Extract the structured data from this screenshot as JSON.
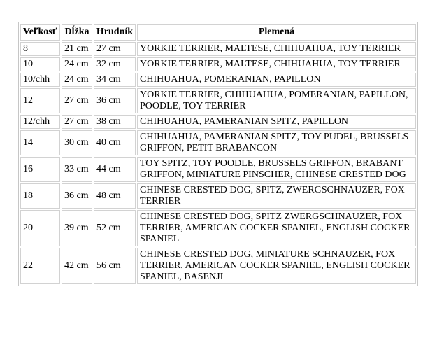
{
  "colors": {
    "background": "#ffffff",
    "table_outer_border": "#c6c6c6",
    "cell_border": "#d2d2d2",
    "text": "#000000"
  },
  "table": {
    "columns": [
      {
        "id": "size",
        "label": "Veľkosť"
      },
      {
        "id": "length",
        "label": "Dĺžka"
      },
      {
        "id": "chest",
        "label": "Hrudník"
      },
      {
        "id": "breeds",
        "label": "Plemená"
      }
    ],
    "rows": [
      {
        "size": "8",
        "length": "21 cm",
        "chest": "27 cm",
        "breeds": "YORKIE TERRIER, MALTESE, CHIHUAHUA, TOY TERRIER"
      },
      {
        "size": "10",
        "length": "24 cm",
        "chest": "32 cm",
        "breeds": "YORKIE TERRIER, MALTESE, CHIHUAHUA, TOY TERRIER"
      },
      {
        "size": "10/chh",
        "length": "24 cm",
        "chest": "34 cm",
        "breeds": "CHIHUAHUA, POMERANIAN, PAPILLON"
      },
      {
        "size": "12",
        "length": "27 cm",
        "chest": "36 cm",
        "breeds": "YORKIE TERRIER, CHIHUAHUA, POMERANIAN, PAPILLON, POODLE, TOY TERRIER"
      },
      {
        "size": "12/chh",
        "length": "27 cm",
        "chest": "38 cm",
        "breeds": "CHIHUAHUA, PAMERANIAN SPITZ, PAPILLON"
      },
      {
        "size": "14",
        "length": "30 cm",
        "chest": "40 cm",
        "breeds": "CHIHUAHUA, PAMERANIAN SPITZ, TOY PUDEL, BRUSSELS GRIFFON, PETIT BRABANCON"
      },
      {
        "size": "16",
        "length": "33 cm",
        "chest": "44 cm",
        "breeds": "TOY SPITZ, TOY POODLE, BRUSSELS GRIFFON, BRABANT GRIFFON, MINIATURE PINSCHER, CHINESE CRESTED DOG"
      },
      {
        "size": "18",
        "length": "36 cm",
        "chest": "48 cm",
        "breeds": "CHINESE CRESTED DOG, SPITZ, ZWERGSCHNAUZER, FOX TERRIER"
      },
      {
        "size": "20",
        "length": "39 cm",
        "chest": "52 cm",
        "breeds": "CHINESE CRESTED DOG, SPITZ ZWERGSCHNAUZER, FOX TERRIER, AMERICAN COCKER SPANIEL, ENGLISH COCKER SPANIEL"
      },
      {
        "size": "22",
        "length": "42 cm",
        "chest": "56 cm",
        "breeds": "CHINESE CRESTED DOG, MINIATURE SCHNAUZER, FOX TERRIER, AMERICAN COCKER SPANIEL, ENGLISH COCKER SPANIEL, BASENJI"
      }
    ]
  }
}
